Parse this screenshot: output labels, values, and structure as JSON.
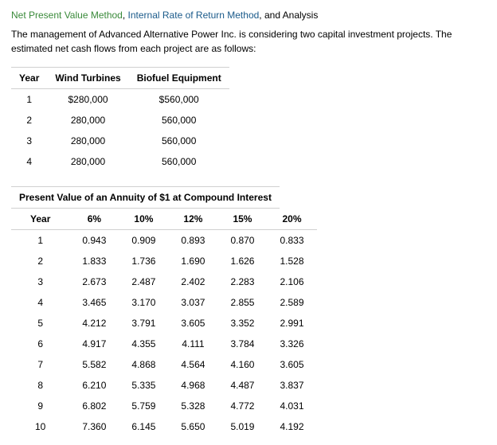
{
  "heading": {
    "link1": "Net Present Value Method",
    "link2": "Internal Rate of Return Method",
    "tail": ", and Analysis"
  },
  "intro": "The management of Advanced Alternative Power Inc. is considering two capital investment projects. The estimated net cash flows from each project are as follows:",
  "cashflows": {
    "headers": {
      "year": "Year",
      "a": "Wind Turbines",
      "b": "Biofuel Equipment"
    },
    "rows": [
      {
        "year": "1",
        "a": "$280,000",
        "b": "$560,000"
      },
      {
        "year": "2",
        "a": "280,000",
        "b": "560,000"
      },
      {
        "year": "3",
        "a": "280,000",
        "b": "560,000"
      },
      {
        "year": "4",
        "a": "280,000",
        "b": "560,000"
      }
    ]
  },
  "annuity": {
    "caption": "Present Value of an Annuity of $1 at Compound Interest",
    "headers": {
      "year": "Year",
      "r6": "6%",
      "r10": "10%",
      "r12": "12%",
      "r15": "15%",
      "r20": "20%"
    },
    "rows": [
      {
        "year": "1",
        "r6": "0.943",
        "r10": "0.909",
        "r12": "0.893",
        "r15": "0.870",
        "r20": "0.833"
      },
      {
        "year": "2",
        "r6": "1.833",
        "r10": "1.736",
        "r12": "1.690",
        "r15": "1.626",
        "r20": "1.528"
      },
      {
        "year": "3",
        "r6": "2.673",
        "r10": "2.487",
        "r12": "2.402",
        "r15": "2.283",
        "r20": "2.106"
      },
      {
        "year": "4",
        "r6": "3.465",
        "r10": "3.170",
        "r12": "3.037",
        "r15": "2.855",
        "r20": "2.589"
      },
      {
        "year": "5",
        "r6": "4.212",
        "r10": "3.791",
        "r12": "3.605",
        "r15": "3.352",
        "r20": "2.991"
      },
      {
        "year": "6",
        "r6": "4.917",
        "r10": "4.355",
        "r12": "4.111",
        "r15": "3.784",
        "r20": "3.326"
      },
      {
        "year": "7",
        "r6": "5.582",
        "r10": "4.868",
        "r12": "4.564",
        "r15": "4.160",
        "r20": "3.605"
      },
      {
        "year": "8",
        "r6": "6.210",
        "r10": "5.335",
        "r12": "4.968",
        "r15": "4.487",
        "r20": "3.837"
      },
      {
        "year": "9",
        "r6": "6.802",
        "r10": "5.759",
        "r12": "5.328",
        "r15": "4.772",
        "r20": "4.031"
      },
      {
        "year": "10",
        "r6": "7.360",
        "r10": "6.145",
        "r12": "5.650",
        "r15": "5.019",
        "r20": "4.192"
      }
    ]
  }
}
